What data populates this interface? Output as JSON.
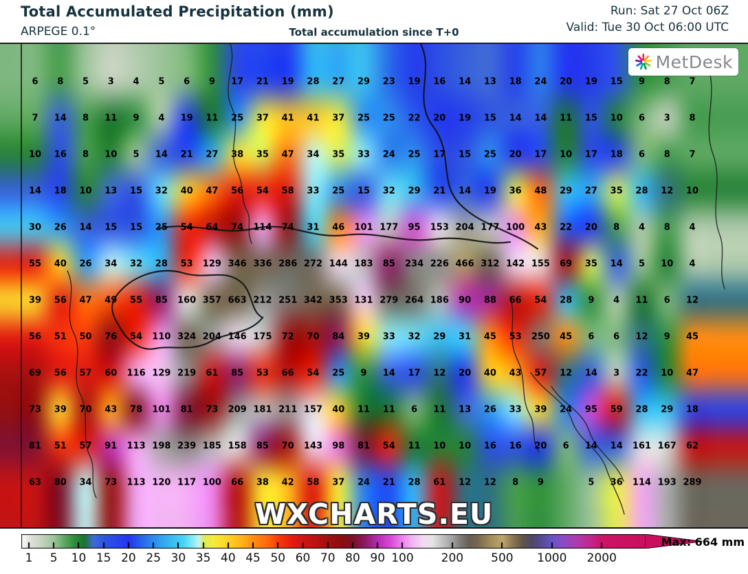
{
  "header": {
    "title": "Total Accumulated Precipitation (mm)",
    "model": "ARPEGE 0.1°",
    "subtitle": "Total accumulation since T+0",
    "run_line": "Run: Sat 27 Oct 06Z",
    "valid_line": "Valid: Tue 30 Oct 06:00 UTC",
    "text_color": "#16323e"
  },
  "branding": {
    "logo_text": "MetDesk",
    "watermark": "WXCHARTS.EU",
    "logo_ray_colors": [
      "#e63329",
      "#f7941d",
      "#ffd200",
      "#8cc63f",
      "#009640",
      "#00a99d",
      "#1d71b8",
      "#662483",
      "#ec008c"
    ]
  },
  "colorbar": {
    "tick_labels": [
      "1",
      "5",
      "10",
      "15",
      "20",
      "25",
      "30",
      "35",
      "40",
      "45",
      "50",
      "60",
      "70",
      "80",
      "90",
      "100",
      "200",
      "500",
      "1000",
      "2000"
    ],
    "max_label": "Max: 664 mm",
    "arrow_color": "#cb0d5d"
  },
  "chart_data": {
    "type": "heatmap",
    "title": "Total Accumulated Precipitation (mm)",
    "units": "mm",
    "model": "ARPEGE 0.1°",
    "max_value": 664,
    "grid_cols": 27,
    "grid_rows": 12,
    "values": [
      [
        6,
        8,
        5,
        3,
        4,
        5,
        6,
        9,
        17,
        21,
        19,
        28,
        27,
        29,
        23,
        19,
        16,
        14,
        13,
        18,
        24,
        20,
        19,
        15,
        9,
        8,
        7
      ],
      [
        7,
        14,
        8,
        11,
        9,
        4,
        19,
        11,
        25,
        37,
        41,
        41,
        37,
        25,
        25,
        22,
        20,
        19,
        15,
        14,
        14,
        11,
        15,
        10,
        6,
        3,
        8
      ],
      [
        10,
        16,
        8,
        10,
        5,
        14,
        21,
        27,
        38,
        35,
        47,
        34,
        35,
        33,
        24,
        25,
        17,
        15,
        25,
        20,
        17,
        10,
        17,
        18,
        6,
        8,
        7
      ],
      [
        14,
        18,
        10,
        13,
        15,
        32,
        40,
        47,
        56,
        54,
        58,
        33,
        25,
        15,
        32,
        29,
        21,
        14,
        19,
        36,
        48,
        29,
        27,
        35,
        28,
        12,
        10
      ],
      [
        30,
        26,
        14,
        15,
        15,
        25,
        54,
        64,
        74,
        114,
        74,
        31,
        46,
        101,
        177,
        95,
        153,
        204,
        177,
        100,
        43,
        22,
        20,
        8,
        4,
        8,
        4
      ],
      [
        55,
        40,
        26,
        34,
        32,
        28,
        53,
        129,
        346,
        336,
        286,
        272,
        144,
        183,
        85,
        234,
        226,
        466,
        312,
        142,
        155,
        69,
        35,
        14,
        5,
        10,
        4
      ],
      [
        39,
        56,
        47,
        49,
        55,
        85,
        160,
        357,
        663,
        212,
        251,
        342,
        353,
        131,
        279,
        264,
        186,
        90,
        88,
        66,
        54,
        28,
        9,
        4,
        11,
        6,
        12
      ],
      [
        56,
        51,
        50,
        76,
        54,
        110,
        324,
        204,
        146,
        175,
        72,
        70,
        84,
        39,
        33,
        32,
        29,
        31,
        45,
        53,
        250,
        45,
        6,
        6,
        12,
        9,
        45
      ],
      [
        69,
        56,
        57,
        60,
        116,
        129,
        219,
        61,
        85,
        53,
        66,
        54,
        25,
        9,
        14,
        17,
        12,
        20,
        40,
        43,
        57,
        12,
        14,
        3,
        22,
        10,
        47
      ],
      [
        73,
        39,
        70,
        43,
        78,
        101,
        81,
        73,
        209,
        181,
        211,
        157,
        40,
        11,
        11,
        6,
        11,
        13,
        26,
        33,
        39,
        24,
        95,
        59,
        28,
        29,
        18
      ],
      [
        81,
        51,
        57,
        91,
        113,
        198,
        239,
        185,
        158,
        85,
        70,
        143,
        98,
        81,
        54,
        11,
        10,
        10,
        16,
        16,
        20,
        6,
        14,
        14,
        161,
        167,
        62
      ],
      [
        63,
        80,
        34,
        73,
        113,
        120,
        117,
        100,
        66,
        38,
        42,
        58,
        37,
        24,
        21,
        28,
        61,
        12,
        12,
        8,
        9,
        null,
        5,
        36,
        114,
        193,
        289
      ]
    ],
    "scale_ticks": [
      1,
      5,
      10,
      15,
      20,
      25,
      30,
      35,
      40,
      45,
      50,
      60,
      70,
      80,
      90,
      100,
      200,
      500,
      1000,
      2000
    ],
    "palette": [
      [
        0,
        "#ffffff"
      ],
      [
        1,
        "#e3e3e0"
      ],
      [
        3,
        "#c6d2bf"
      ],
      [
        5,
        "#9cc49a"
      ],
      [
        7,
        "#5fa963"
      ],
      [
        9,
        "#2f8f3f"
      ],
      [
        11,
        "#1c742e"
      ],
      [
        13,
        "#3f6bd8"
      ],
      [
        15,
        "#2f55e2"
      ],
      [
        18,
        "#2744ea"
      ],
      [
        20,
        "#2336ee"
      ],
      [
        23,
        "#2a6cea"
      ],
      [
        25,
        "#2f8eee"
      ],
      [
        28,
        "#36b6f0"
      ],
      [
        31,
        "#48d4f4"
      ],
      [
        33,
        "#8febf6"
      ],
      [
        34,
        "#c2f4f4"
      ],
      [
        35,
        "#d9ee5e"
      ],
      [
        37,
        "#f6ec3a"
      ],
      [
        40,
        "#ffd226"
      ],
      [
        43,
        "#ffae1a"
      ],
      [
        45,
        "#ff8d12"
      ],
      [
        48,
        "#fe660e"
      ],
      [
        50,
        "#f93b0c"
      ],
      [
        55,
        "#e81e10"
      ],
      [
        60,
        "#d11414"
      ],
      [
        65,
        "#bb1212"
      ],
      [
        70,
        "#a31010"
      ],
      [
        75,
        "#8c0e0e"
      ],
      [
        80,
        "#7c1026"
      ],
      [
        85,
        "#8d1b66"
      ],
      [
        90,
        "#b62db2"
      ],
      [
        95,
        "#d749d7"
      ],
      [
        100,
        "#ee87ee"
      ],
      [
        120,
        "#f4b6f4"
      ],
      [
        140,
        "#f2daf2"
      ],
      [
        160,
        "#e5e5e5"
      ],
      [
        180,
        "#c1c1c1"
      ],
      [
        200,
        "#a0a0a0"
      ],
      [
        250,
        "#7d7975"
      ],
      [
        300,
        "#696055"
      ],
      [
        350,
        "#776650"
      ],
      [
        420,
        "#9f8957"
      ],
      [
        500,
        "#bfa76d"
      ],
      [
        600,
        "#8b7850"
      ],
      [
        700,
        "#625647"
      ],
      [
        800,
        "#4f4769"
      ],
      [
        900,
        "#594b9b"
      ],
      [
        1000,
        "#6955c7"
      ],
      [
        1200,
        "#8b4cc7"
      ],
      [
        1500,
        "#af3aaf"
      ],
      [
        1800,
        "#c32487"
      ],
      [
        2000,
        "#cb1367"
      ],
      [
        2600,
        "#cb0d5d"
      ]
    ]
  }
}
